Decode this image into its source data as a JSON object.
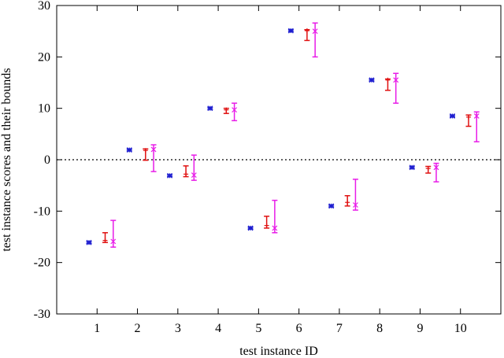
{
  "chart_data": {
    "type": "scatter",
    "xlabel": "test instance ID",
    "ylabel": "test instance scores and their bounds",
    "xticks": [
      "1",
      "2",
      "3",
      "4",
      "5",
      "6",
      "7",
      "8",
      "9",
      "10"
    ],
    "yticks": [
      "-30",
      "-20",
      "-10",
      "0",
      "10",
      "20",
      "30"
    ],
    "xlim": [
      0,
      11
    ],
    "ylim": [
      -30,
      30
    ],
    "grid": false,
    "reference_line": {
      "y": 0,
      "style": "dotted",
      "color": "#000000"
    },
    "series": [
      {
        "color": "#1f1fd0",
        "marker": "star",
        "x_offset": -0.2,
        "points": [
          {
            "x": 1,
            "y": -16.1,
            "low": -16.3,
            "high": -15.9
          },
          {
            "x": 2,
            "y": 1.9,
            "low": 1.7,
            "high": 2.1
          },
          {
            "x": 3,
            "y": -3.1,
            "low": -3.3,
            "high": -2.9
          },
          {
            "x": 4,
            "y": 10.0,
            "low": 9.8,
            "high": 10.2
          },
          {
            "x": 5,
            "y": -13.3,
            "low": -13.5,
            "high": -13.1
          },
          {
            "x": 6,
            "y": 25.1,
            "low": 24.9,
            "high": 25.3
          },
          {
            "x": 7,
            "y": -9.0,
            "low": -9.2,
            "high": -8.8
          },
          {
            "x": 8,
            "y": 15.5,
            "low": 15.3,
            "high": 15.7
          },
          {
            "x": 9,
            "y": -1.5,
            "low": -1.7,
            "high": -1.3
          },
          {
            "x": 10,
            "y": 8.5,
            "low": 8.3,
            "high": 8.7
          }
        ]
      },
      {
        "color": "#e01010",
        "marker": "plus",
        "x_offset": 0.2,
        "points": [
          {
            "x": 1,
            "y": -15.7,
            "low": -16.1,
            "high": -14.2
          },
          {
            "x": 2,
            "y": 1.8,
            "low": -0.1,
            "high": 2.1
          },
          {
            "x": 3,
            "y": -2.8,
            "low": -3.3,
            "high": -1.2
          },
          {
            "x": 4,
            "y": 9.7,
            "low": 9.0,
            "high": 10.0
          },
          {
            "x": 5,
            "y": -12.8,
            "low": -13.3,
            "high": -11.0
          },
          {
            "x": 6,
            "y": 25.1,
            "low": 23.2,
            "high": 25.3
          },
          {
            "x": 7,
            "y": -8.3,
            "low": -9.0,
            "high": -7.0
          },
          {
            "x": 8,
            "y": 15.5,
            "low": 13.5,
            "high": 15.7
          },
          {
            "x": 9,
            "y": -1.7,
            "low": -2.6,
            "high": -1.3
          },
          {
            "x": 10,
            "y": 8.3,
            "low": 6.5,
            "high": 8.7
          }
        ]
      },
      {
        "color": "#e81ce8",
        "marker": "x",
        "x_offset": 0.4,
        "points": [
          {
            "x": 1,
            "y": -15.9,
            "low": -17.0,
            "high": -11.8
          },
          {
            "x": 2,
            "y": 2.0,
            "low": -2.3,
            "high": 2.9
          },
          {
            "x": 3,
            "y": -3.0,
            "low": -4.0,
            "high": 0.9
          },
          {
            "x": 4,
            "y": 9.7,
            "low": 7.6,
            "high": 11.0
          },
          {
            "x": 5,
            "y": -13.3,
            "low": -14.2,
            "high": -7.9
          },
          {
            "x": 6,
            "y": 25.0,
            "low": 20.0,
            "high": 26.6
          },
          {
            "x": 7,
            "y": -8.8,
            "low": -9.8,
            "high": -3.8
          },
          {
            "x": 8,
            "y": 15.5,
            "low": 11.0,
            "high": 16.8
          },
          {
            "x": 9,
            "y": -1.5,
            "low": -4.3,
            "high": -0.7
          },
          {
            "x": 10,
            "y": 8.5,
            "low": 3.5,
            "high": 9.3
          }
        ]
      }
    ]
  }
}
